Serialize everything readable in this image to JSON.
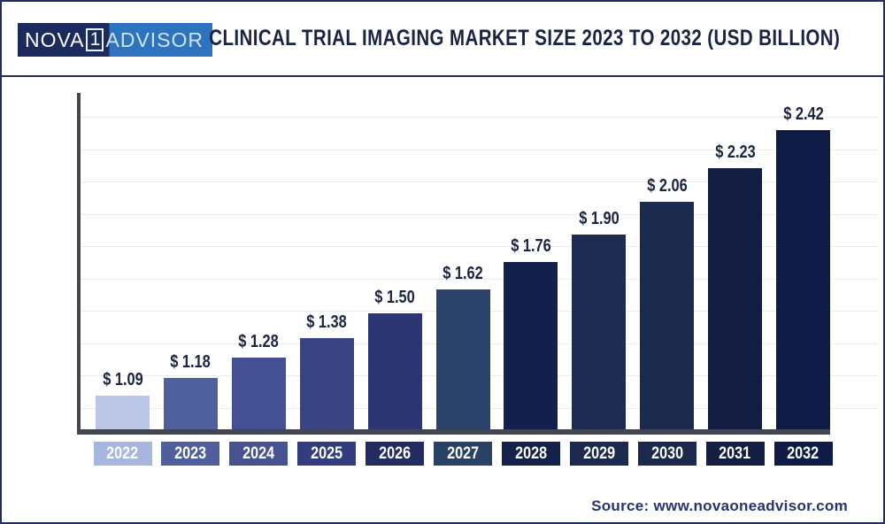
{
  "header": {
    "logo": {
      "part1": "NOVA",
      "part2": "1",
      "part3": "ADVISOR"
    },
    "title": "CLINICAL TRIAL IMAGING MARKET SIZE 2023 TO 2032 (USD BILLION)"
  },
  "footer": {
    "source": "Source: www.novaoneadvisor.com"
  },
  "colors": {
    "frame_border": "#232b5e",
    "logo_navy": "#1c2b5e",
    "logo_blue": "#2e73c0",
    "title_text": "#1b2343",
    "axis": "#41464f",
    "gridline": "#ececec",
    "value_label_text": "#1b2440",
    "source_text": "#2a3270"
  },
  "chart_data": {
    "type": "bar",
    "title": "CLINICAL TRIAL IMAGING MARKET SIZE 2023 TO 2032 (USD BILLION)",
    "unit": "USD Billion",
    "categories": [
      "2022",
      "2023",
      "2024",
      "2025",
      "2026",
      "2027",
      "2028",
      "2029",
      "2030",
      "2031",
      "2032"
    ],
    "values": [
      1.09,
      1.18,
      1.28,
      1.38,
      1.5,
      1.62,
      1.76,
      1.9,
      2.06,
      2.23,
      2.42
    ],
    "bar_labels": [
      "$ 1.09",
      "$ 1.18",
      "$ 1.28",
      "$ 1.38",
      "$ 1.50",
      "$ 1.62",
      "$ 1.76",
      "$ 1.90",
      "$ 2.06",
      "$ 2.23",
      "$ 2.42"
    ],
    "bar_colors": [
      "#bcc7e7",
      "#50609f",
      "#455094",
      "#3a4484",
      "#2c3571",
      "#2b4269",
      "#13204b",
      "#1c2b4f",
      "#1b2a4d",
      "#121d41",
      "#0e1b44"
    ],
    "box_colors": [
      "#a6b6df",
      "#4f5f9e",
      "#475390",
      "#333d7d",
      "#222c60",
      "#2a4166",
      "#142149",
      "#1b2a4e",
      "#1a294c",
      "#131e42",
      "#0f1c45"
    ],
    "xlabel": "",
    "ylabel": "",
    "ylim": [
      0.92,
      2.62
    ],
    "grid": "horizontal",
    "legend": "none"
  }
}
